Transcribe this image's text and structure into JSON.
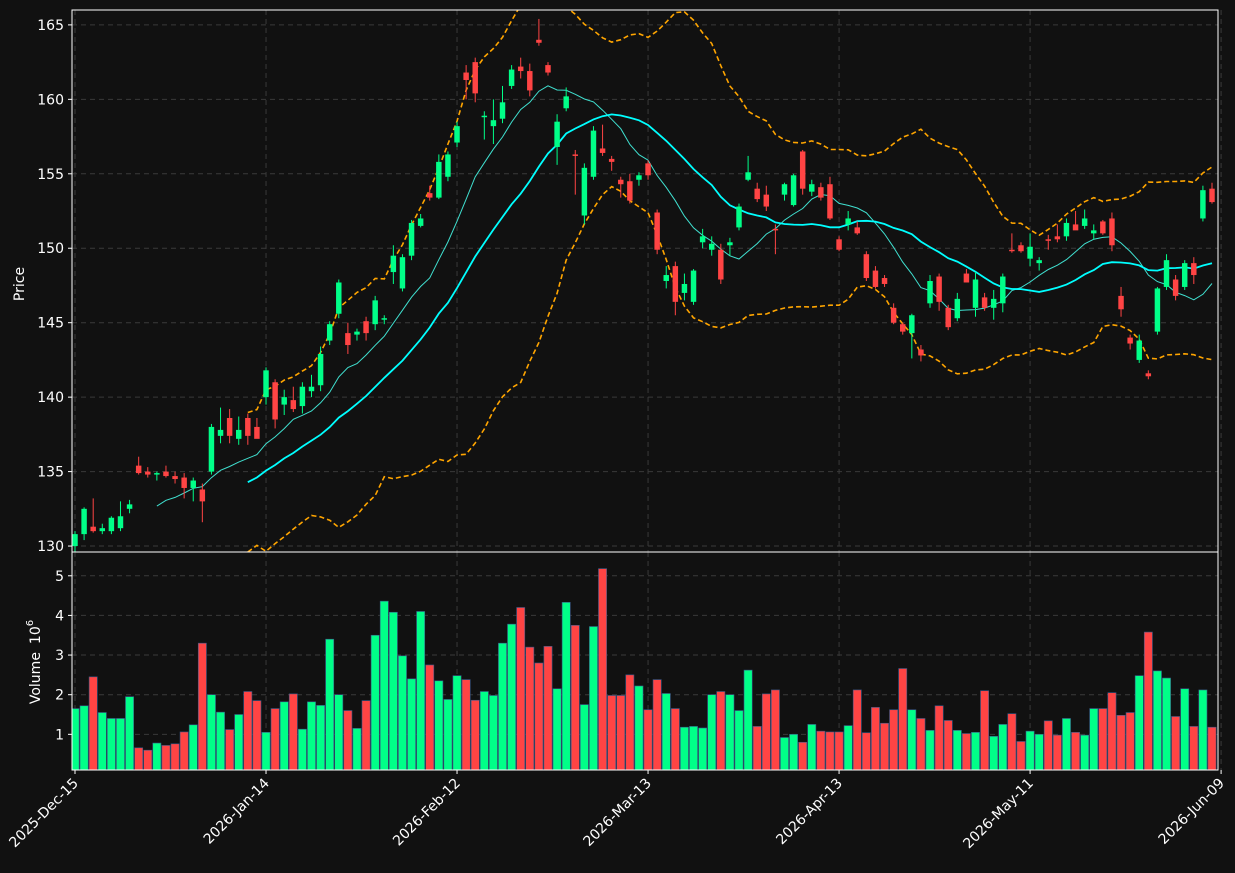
{
  "chart_data": {
    "type": "candlestick",
    "colors": {
      "background": "#111111",
      "frame": "#ffffff",
      "grid": "#3a3a3a",
      "up": "#00ff88",
      "down": "#ff4444",
      "bollinger": "#ffa500",
      "ma_fast": "#40e0d0",
      "ma_slow": "#00ffff",
      "text": "#ffffff"
    },
    "price_panel": {
      "ylabel": "Price",
      "ylim": [
        129.6,
        166
      ],
      "yticks": [
        130,
        135,
        140,
        145,
        150,
        155,
        160,
        165
      ]
    },
    "volume_panel": {
      "ylabel": "Volume",
      "yscale_base": "10",
      "yscale_exp": "6",
      "ylim": [
        0.1,
        5.6
      ],
      "yticks": [
        1,
        2,
        3,
        4,
        5
      ]
    },
    "xticks": [
      {
        "index": 0,
        "label": "2025-Dec-15"
      },
      {
        "index": 21,
        "label": "2026-Jan-14"
      },
      {
        "index": 42,
        "label": "2026-Feb-12"
      },
      {
        "index": 63,
        "label": "2026-Mar-13"
      },
      {
        "index": 84,
        "label": "2026-Apr-13"
      },
      {
        "index": 105,
        "label": "2026-May-11"
      },
      {
        "index": 126,
        "label": "2026-Jun-09"
      }
    ],
    "candles": [
      [
        130.0,
        131.0,
        129.6,
        130.8,
        1.65
      ],
      [
        130.8,
        132.6,
        130.4,
        132.5,
        1.72
      ],
      [
        131.3,
        133.2,
        130.9,
        131.0,
        2.45
      ],
      [
        131.0,
        131.5,
        130.8,
        131.2,
        1.55
      ],
      [
        131.0,
        132.0,
        130.8,
        131.9,
        1.4
      ],
      [
        131.2,
        133.0,
        131.0,
        132.0,
        1.4
      ],
      [
        132.5,
        133.1,
        132.2,
        132.8,
        1.95
      ],
      [
        135.4,
        136.0,
        134.8,
        134.9,
        0.66
      ],
      [
        135.0,
        135.3,
        134.6,
        134.8,
        0.6
      ],
      [
        134.8,
        135.0,
        134.4,
        134.9,
        0.78
      ],
      [
        135.0,
        135.4,
        134.6,
        134.7,
        0.72
      ],
      [
        134.7,
        135.0,
        134.2,
        134.5,
        0.76
      ],
      [
        134.6,
        134.9,
        133.2,
        133.9,
        1.06
      ],
      [
        133.9,
        134.6,
        133.0,
        134.4,
        1.24
      ],
      [
        133.8,
        134.2,
        131.6,
        133.0,
        3.3
      ],
      [
        135.0,
        138.2,
        134.8,
        138.0,
        2.0
      ],
      [
        137.4,
        139.3,
        136.9,
        137.8,
        1.56
      ],
      [
        138.6,
        139.2,
        136.9,
        137.4,
        1.12
      ],
      [
        137.2,
        138.7,
        136.8,
        137.8,
        1.5
      ],
      [
        138.6,
        138.9,
        136.8,
        137.4,
        2.08
      ],
      [
        138.0,
        138.6,
        137.4,
        137.2,
        1.85
      ],
      [
        140.0,
        142.0,
        139.5,
        141.8,
        1.05
      ],
      [
        141.0,
        141.2,
        137.9,
        138.5,
        1.65
      ],
      [
        139.5,
        140.5,
        138.8,
        140.0,
        1.82
      ],
      [
        139.8,
        140.7,
        139.0,
        139.2,
        2.02
      ],
      [
        139.4,
        141.0,
        138.9,
        140.7,
        1.13
      ],
      [
        140.4,
        141.5,
        140.0,
        140.7,
        1.82
      ],
      [
        140.8,
        143.4,
        140.4,
        142.9,
        1.73
      ],
      [
        143.8,
        145.1,
        143.5,
        144.9,
        3.4
      ],
      [
        145.6,
        147.9,
        145.3,
        147.7,
        2.0
      ],
      [
        144.3,
        145.0,
        142.9,
        143.5,
        1.6
      ],
      [
        144.2,
        144.6,
        143.8,
        144.4,
        1.15
      ],
      [
        145.1,
        145.4,
        143.8,
        144.3,
        1.85
      ],
      [
        144.9,
        146.8,
        144.5,
        146.5,
        3.5
      ],
      [
        145.2,
        145.5,
        144.9,
        145.3,
        4.36
      ],
      [
        148.4,
        150.2,
        147.6,
        149.5,
        4.08
      ],
      [
        147.3,
        149.6,
        147.1,
        149.4,
        2.98
      ],
      [
        149.5,
        151.9,
        149.2,
        151.7,
        2.4
      ],
      [
        151.5,
        152.3,
        151.4,
        152.0,
        4.1
      ],
      [
        153.7,
        154.2,
        153.2,
        153.4,
        2.75
      ],
      [
        153.4,
        156.3,
        153.3,
        155.8,
        2.35
      ],
      [
        154.8,
        156.5,
        154.5,
        156.3,
        1.88
      ],
      [
        157.1,
        158.5,
        156.8,
        158.2,
        2.48
      ],
      [
        161.8,
        162.3,
        160.0,
        161.3,
        2.38
      ],
      [
        162.5,
        162.8,
        159.8,
        160.4,
        1.86
      ],
      [
        158.8,
        159.2,
        157.3,
        158.9,
        2.08
      ],
      [
        158.2,
        160.0,
        157.0,
        158.6,
        1.98
      ],
      [
        158.7,
        160.9,
        158.4,
        159.8,
        3.3
      ],
      [
        160.9,
        162.3,
        160.7,
        162.0,
        3.78
      ],
      [
        162.2,
        162.8,
        161.4,
        161.9,
        4.2
      ],
      [
        161.9,
        162.4,
        160.2,
        160.6,
        3.2
      ],
      [
        164.0,
        165.4,
        163.6,
        163.8,
        2.8
      ],
      [
        162.3,
        162.5,
        161.6,
        161.8,
        3.22
      ],
      [
        156.8,
        159.0,
        155.6,
        158.5,
        2.15
      ],
      [
        159.4,
        160.8,
        159.2,
        160.2,
        4.33
      ],
      [
        156.3,
        156.6,
        153.6,
        156.2,
        3.75
      ],
      [
        152.2,
        155.7,
        151.6,
        155.4,
        1.75
      ],
      [
        154.8,
        158.2,
        154.6,
        157.9,
        3.72
      ],
      [
        156.7,
        158.3,
        156.2,
        156.4,
        5.18
      ],
      [
        156.0,
        156.2,
        155.2,
        155.8,
        1.98
      ],
      [
        154.6,
        154.8,
        153.4,
        154.3,
        1.98
      ],
      [
        154.5,
        155.0,
        153.0,
        153.2,
        2.5
      ],
      [
        154.6,
        155.1,
        154.2,
        154.9,
        2.22
      ],
      [
        155.7,
        155.9,
        154.6,
        154.9,
        1.62
      ],
      [
        152.4,
        152.6,
        149.6,
        149.9,
        2.38
      ],
      [
        147.8,
        148.8,
        147.3,
        148.2,
        2.03
      ],
      [
        148.8,
        149.1,
        145.5,
        146.4,
        1.65
      ],
      [
        147.0,
        148.3,
        146.5,
        147.6,
        1.18
      ],
      [
        146.4,
        148.6,
        146.2,
        148.5,
        1.2
      ],
      [
        150.4,
        151.3,
        150.0,
        150.8,
        1.16
      ],
      [
        149.9,
        150.8,
        149.5,
        150.3,
        2.0
      ],
      [
        149.9,
        150.3,
        147.6,
        147.9,
        2.08
      ],
      [
        150.2,
        150.7,
        149.5,
        150.4,
        2.0
      ],
      [
        151.4,
        153.0,
        151.2,
        152.8,
        1.6
      ],
      [
        154.6,
        156.2,
        154.5,
        155.1,
        2.62
      ],
      [
        154.0,
        154.4,
        153.1,
        153.3,
        1.2
      ],
      [
        153.6,
        154.2,
        152.5,
        152.8,
        2.02
      ],
      [
        151.3,
        151.6,
        149.6,
        151.2,
        2.12
      ],
      [
        153.6,
        154.4,
        153.2,
        154.3,
        0.92
      ],
      [
        152.9,
        155.0,
        152.8,
        154.9,
        1.0
      ],
      [
        156.5,
        156.6,
        153.6,
        154.0,
        0.8
      ],
      [
        153.8,
        154.6,
        153.5,
        154.3,
        1.25
      ],
      [
        154.1,
        154.4,
        153.2,
        153.4,
        1.08
      ],
      [
        154.3,
        154.8,
        151.9,
        152.0,
        1.06
      ],
      [
        150.6,
        150.8,
        149.8,
        149.9,
        1.06
      ],
      [
        151.6,
        152.5,
        151.2,
        152.0,
        1.22
      ],
      [
        151.4,
        151.8,
        150.9,
        151.0,
        2.12
      ],
      [
        149.6,
        149.8,
        147.8,
        148.0,
        1.04
      ],
      [
        148.5,
        148.8,
        147.3,
        147.4,
        1.68
      ],
      [
        148.0,
        148.2,
        147.4,
        147.6,
        1.28
      ],
      [
        146.0,
        146.3,
        144.9,
        145.0,
        1.62
      ],
      [
        144.9,
        145.0,
        144.2,
        144.4,
        2.66
      ],
      [
        144.3,
        145.6,
        142.6,
        145.5,
        1.62
      ],
      [
        143.2,
        143.5,
        142.4,
        142.8,
        1.4
      ],
      [
        146.3,
        148.2,
        146.0,
        147.8,
        1.1
      ],
      [
        148.1,
        148.3,
        145.8,
        146.4,
        1.72
      ],
      [
        146.0,
        146.2,
        144.5,
        144.7,
        1.35
      ],
      [
        145.3,
        147.0,
        145.1,
        146.6,
        1.1
      ],
      [
        148.3,
        148.6,
        147.8,
        147.7,
        1.02
      ],
      [
        146.0,
        148.4,
        145.4,
        147.9,
        1.05
      ],
      [
        146.7,
        147.0,
        145.8,
        146.0,
        2.1
      ],
      [
        146.0,
        147.2,
        145.2,
        146.6,
        0.95
      ],
      [
        146.3,
        148.3,
        145.7,
        148.1,
        1.25
      ],
      [
        149.9,
        151.0,
        149.7,
        149.8,
        1.52
      ],
      [
        150.2,
        150.4,
        149.7,
        149.8,
        0.82
      ],
      [
        149.3,
        151.0,
        148.8,
        150.1,
        1.08
      ],
      [
        149.0,
        149.4,
        148.5,
        149.2,
        1.0
      ],
      [
        150.6,
        150.9,
        149.9,
        150.5,
        1.34
      ],
      [
        150.8,
        151.6,
        150.4,
        150.6,
        0.98
      ],
      [
        150.8,
        152.0,
        150.5,
        151.7,
        1.4
      ],
      [
        151.6,
        152.5,
        151.3,
        151.2,
        1.05
      ],
      [
        151.5,
        152.6,
        151.3,
        152.0,
        0.98
      ],
      [
        151.0,
        151.6,
        150.6,
        151.2,
        1.65
      ],
      [
        151.8,
        151.9,
        150.9,
        151.0,
        1.65
      ],
      [
        152.0,
        152.4,
        149.8,
        150.2,
        2.05
      ],
      [
        146.8,
        147.4,
        145.4,
        145.9,
        1.48
      ],
      [
        144.0,
        144.2,
        143.2,
        143.6,
        1.55
      ],
      [
        142.5,
        144.2,
        142.3,
        143.8,
        2.48
      ],
      [
        141.6,
        141.8,
        141.2,
        141.4,
        3.58
      ],
      [
        144.4,
        147.4,
        144.2,
        147.3,
        2.6
      ],
      [
        147.4,
        149.6,
        147.2,
        149.2,
        2.42
      ],
      [
        147.9,
        148.2,
        146.5,
        146.8,
        1.45
      ],
      [
        147.4,
        149.2,
        147.2,
        149.0,
        2.15
      ],
      [
        149.0,
        149.4,
        147.6,
        148.2,
        1.2
      ],
      [
        152.0,
        154.2,
        151.8,
        153.9,
        2.12
      ],
      [
        154.0,
        154.4,
        153.0,
        153.1,
        1.18
      ]
    ],
    "series_overlays": {
      "ma_fast_window": 10,
      "ma_slow_window": 20,
      "bollinger_window": 20,
      "bollinger_k": 2
    }
  }
}
